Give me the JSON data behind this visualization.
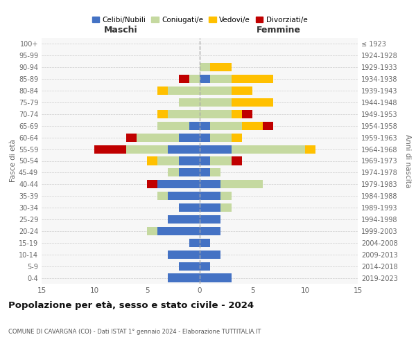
{
  "age_groups": [
    "0-4",
    "5-9",
    "10-14",
    "15-19",
    "20-24",
    "25-29",
    "30-34",
    "35-39",
    "40-44",
    "45-49",
    "50-54",
    "55-59",
    "60-64",
    "65-69",
    "70-74",
    "75-79",
    "80-84",
    "85-89",
    "90-94",
    "95-99",
    "100+"
  ],
  "birth_years": [
    "2019-2023",
    "2014-2018",
    "2009-2013",
    "2004-2008",
    "1999-2003",
    "1994-1998",
    "1989-1993",
    "1984-1988",
    "1979-1983",
    "1974-1978",
    "1969-1973",
    "1964-1968",
    "1959-1963",
    "1954-1958",
    "1949-1953",
    "1944-1948",
    "1939-1943",
    "1934-1938",
    "1929-1933",
    "1924-1928",
    "≤ 1923"
  ],
  "colors": {
    "celibi": "#4472c4",
    "coniugati": "#c5d9a0",
    "vedovi": "#ffc000",
    "divorziati": "#c00000"
  },
  "males": {
    "celibi": [
      3,
      2,
      3,
      1,
      4,
      3,
      2,
      3,
      4,
      2,
      2,
      3,
      2,
      1,
      0,
      0,
      0,
      0,
      0,
      0,
      0
    ],
    "coniugati": [
      0,
      0,
      0,
      0,
      1,
      0,
      0,
      1,
      0,
      1,
      2,
      4,
      4,
      3,
      3,
      2,
      3,
      1,
      0,
      0,
      0
    ],
    "vedovi": [
      0,
      0,
      0,
      0,
      0,
      0,
      0,
      0,
      0,
      0,
      1,
      0,
      0,
      0,
      1,
      0,
      1,
      0,
      0,
      0,
      0
    ],
    "divorziati": [
      0,
      0,
      0,
      0,
      0,
      0,
      0,
      0,
      1,
      0,
      0,
      3,
      1,
      0,
      0,
      0,
      0,
      1,
      0,
      0,
      0
    ]
  },
  "females": {
    "celibi": [
      3,
      1,
      2,
      1,
      2,
      2,
      2,
      2,
      2,
      1,
      1,
      3,
      1,
      1,
      0,
      0,
      0,
      1,
      0,
      0,
      0
    ],
    "coniugati": [
      0,
      0,
      0,
      0,
      0,
      0,
      1,
      1,
      4,
      1,
      2,
      7,
      2,
      3,
      3,
      3,
      3,
      2,
      1,
      0,
      0
    ],
    "vedovi": [
      0,
      0,
      0,
      0,
      0,
      0,
      0,
      0,
      0,
      0,
      0,
      1,
      1,
      2,
      1,
      4,
      2,
      4,
      2,
      0,
      0
    ],
    "divorziati": [
      0,
      0,
      0,
      0,
      0,
      0,
      0,
      0,
      0,
      0,
      1,
      0,
      0,
      1,
      1,
      0,
      0,
      0,
      0,
      0,
      0
    ]
  },
  "title": "Popolazione per età, sesso e stato civile - 2024",
  "subtitle": "COMUNE DI CAVARGNA (CO) - Dati ISTAT 1° gennaio 2024 - Elaborazione TUTTITALIA.IT",
  "xlabel_left": "Maschi",
  "xlabel_right": "Femmine",
  "ylabel_left": "Fasce di età",
  "ylabel_right": "Anni di nascita",
  "xlim": 15,
  "legend_labels": [
    "Celibi/Nubili",
    "Coniugati/e",
    "Vedovi/e",
    "Divorziati/e"
  ],
  "bg_color": "#ffffff",
  "plot_bg": "#f7f7f7"
}
